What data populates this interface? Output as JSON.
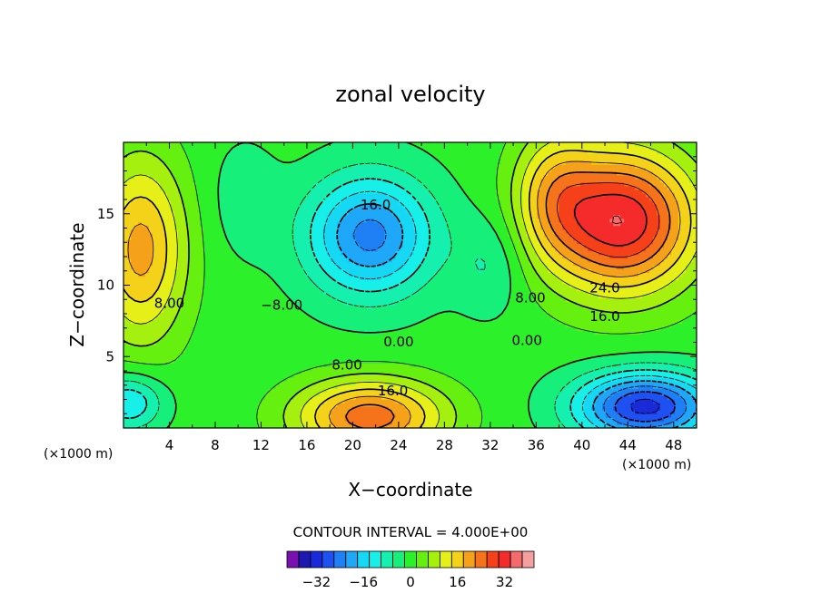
{
  "chart_data": {
    "type": "heatmap",
    "title": "zonal velocity",
    "xlabel": "X−coordinate",
    "ylabel": "Z−coordinate",
    "x_unit_label": "(×1000 m)",
    "y_unit_label": "(×1000 m)",
    "xlim": [
      0,
      50
    ],
    "ylim": [
      0,
      20
    ],
    "x_ticks": [
      4,
      8,
      12,
      16,
      20,
      24,
      28,
      32,
      36,
      40,
      44,
      48
    ],
    "y_ticks": [
      5,
      10,
      15
    ],
    "contour_interval_text": "CONTOUR INTERVAL = 4.000E+00",
    "contour_labels": [
      {
        "text": "16.0",
        "x": 22.0,
        "z": 15.3
      },
      {
        "text": "8.00",
        "x": 4.0,
        "z": 8.4
      },
      {
        "text": "−8.00",
        "x": 13.8,
        "z": 8.3
      },
      {
        "text": "0.00",
        "x": 24.0,
        "z": 5.7
      },
      {
        "text": "8.00",
        "x": 19.5,
        "z": 4.1
      },
      {
        "text": "16.0",
        "x": 23.5,
        "z": 2.3
      },
      {
        "text": "8.00",
        "x": 35.5,
        "z": 8.8
      },
      {
        "text": "0.00",
        "x": 35.2,
        "z": 5.8
      },
      {
        "text": "24.0",
        "x": 42.0,
        "z": 9.5
      },
      {
        "text": "16.0",
        "x": 42.0,
        "z": 7.5
      }
    ],
    "features": [
      {
        "kind": "min",
        "x": 21.5,
        "z": 13.5,
        "value": -20
      },
      {
        "kind": "max",
        "x": 43.5,
        "z": 14.2,
        "value": 32
      },
      {
        "kind": "max",
        "x": 44.0,
        "z": 13.0,
        "value": 28
      },
      {
        "kind": "min",
        "x": 45.0,
        "z": 1.2,
        "value": -28
      },
      {
        "kind": "max",
        "x": 19.5,
        "z": 0.6,
        "value": 24
      }
    ],
    "colorbar": {
      "levels": [
        -40,
        -36,
        -32,
        -28,
        -24,
        -20,
        -16,
        -12,
        -8,
        -4,
        0,
        4,
        8,
        12,
        16,
        20,
        24,
        28,
        32,
        36,
        40
      ],
      "colors": [
        "#7a10b0",
        "#1c18b0",
        "#1a2ad8",
        "#1f50f2",
        "#1f7ff5",
        "#1fa7f8",
        "#16d8f5",
        "#16f0e8",
        "#16f0ae",
        "#16f07a",
        "#2cf02a",
        "#66f010",
        "#a6f010",
        "#e6f018",
        "#f5d21a",
        "#f5a21a",
        "#f5731a",
        "#f5401a",
        "#f52a2a",
        "#f56a6a",
        "#f5a0a0"
      ],
      "tick_labels": [
        "−32",
        "−16",
        "0",
        "16",
        "32"
      ]
    }
  }
}
